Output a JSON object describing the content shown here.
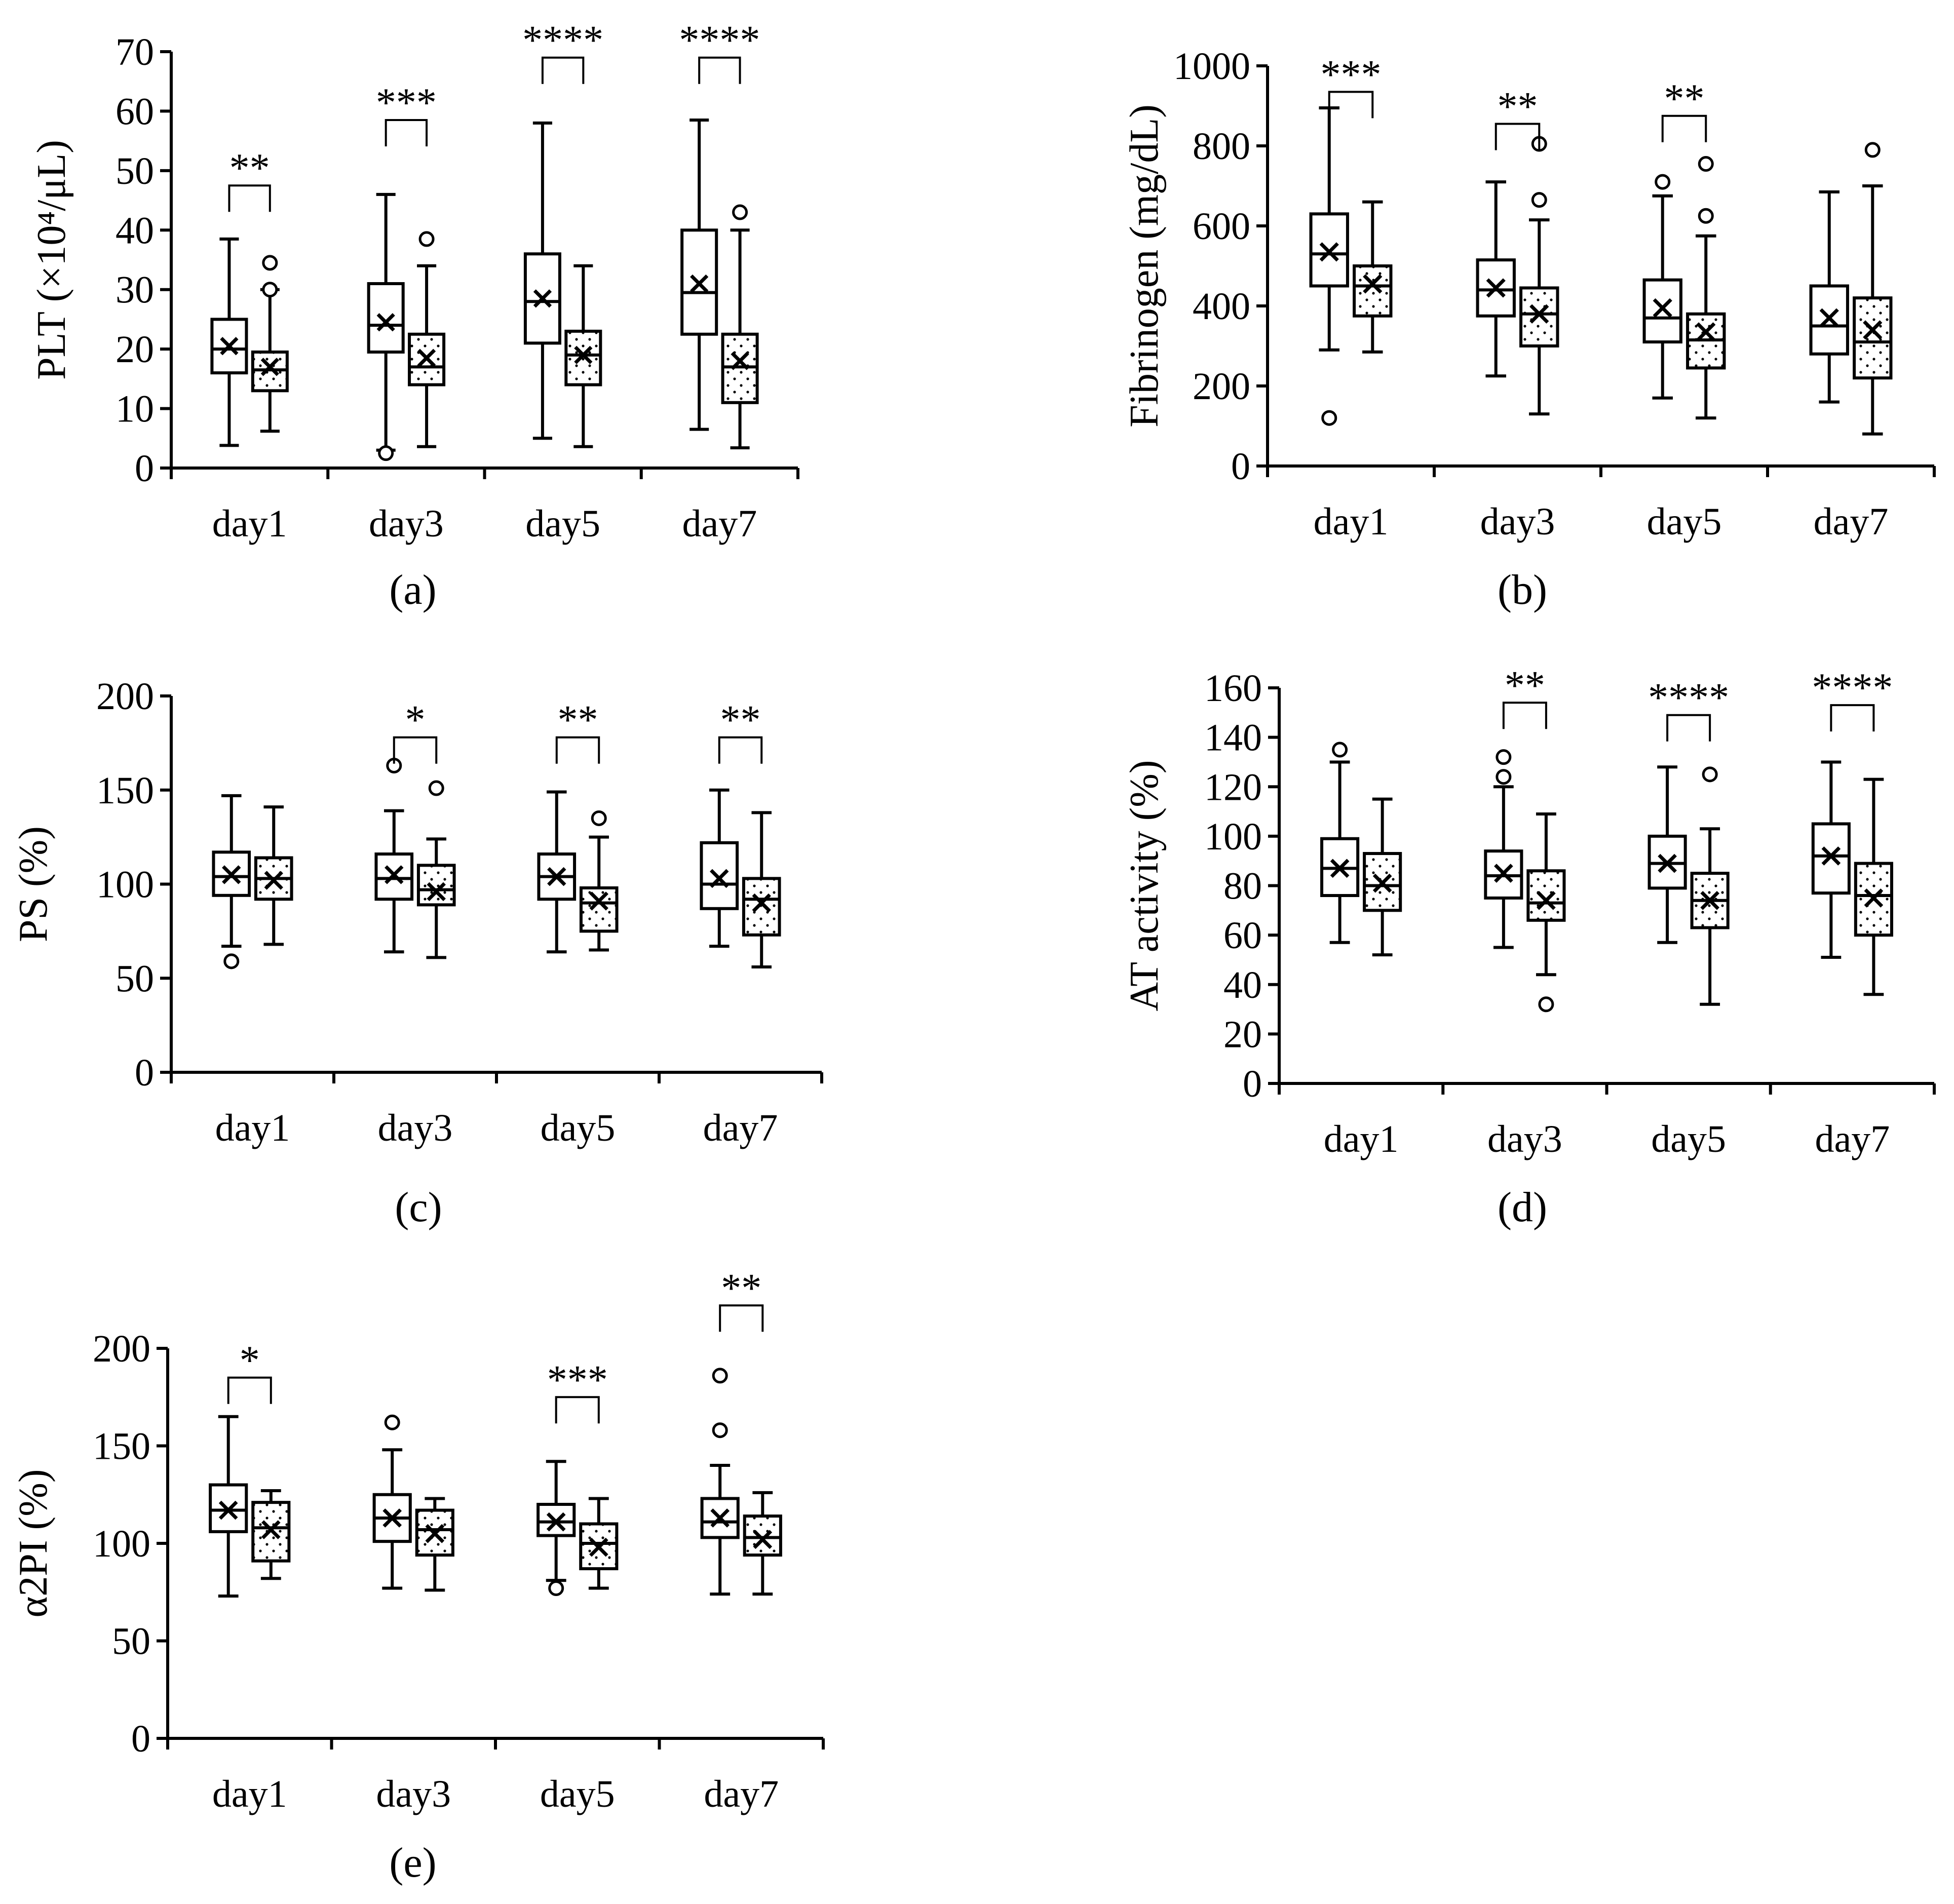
{
  "chart_data": [
    {
      "id": "a",
      "type": "box",
      "panel_label": "(a)",
      "ylabel": "PLT (×10⁴/μL)",
      "ylim": [
        0,
        70
      ],
      "yticks": [
        0,
        10,
        20,
        30,
        40,
        50,
        60,
        70
      ],
      "categories": [
        "day1",
        "day3",
        "day5",
        "day7"
      ],
      "series_style": [
        "plain",
        "dotted"
      ],
      "boxes": [
        [
          {
            "min": 3.8,
            "q1": 16,
            "median": 20,
            "q3": 25,
            "max": 38.5,
            "mean": 20.5,
            "outliers": []
          },
          {
            "min": 6.2,
            "q1": 13,
            "median": 16.5,
            "q3": 19.5,
            "max": 30,
            "mean": 17,
            "outliers": [
              30,
              34.5
            ]
          }
        ],
        [
          {
            "min": 3,
            "q1": 19.5,
            "median": 24,
            "q3": 31,
            "max": 46,
            "mean": 24.5,
            "outliers": [
              2.5
            ]
          },
          {
            "min": 3.6,
            "q1": 14,
            "median": 17,
            "q3": 22.5,
            "max": 34,
            "mean": 18.5,
            "outliers": [
              38.5
            ]
          }
        ],
        [
          {
            "min": 5,
            "q1": 21,
            "median": 28,
            "q3": 36,
            "max": 58,
            "mean": 28.5,
            "outliers": []
          },
          {
            "min": 3.6,
            "q1": 14,
            "median": 19,
            "q3": 23,
            "max": 34,
            "mean": 19,
            "outliers": []
          }
        ],
        [
          {
            "min": 6.5,
            "q1": 22.5,
            "median": 29.5,
            "q3": 40,
            "max": 58.5,
            "mean": 31,
            "outliers": []
          },
          {
            "min": 3.4,
            "q1": 11,
            "median": 17,
            "q3": 22.5,
            "max": 40,
            "mean": 18,
            "outliers": [
              43
            ]
          }
        ]
      ],
      "significance": [
        {
          "category_index": 0,
          "label": "**",
          "level": 47.5
        },
        {
          "category_index": 1,
          "label": "***",
          "level": 58.5
        },
        {
          "category_index": 2,
          "label": "****",
          "level": 69
        },
        {
          "category_index": 3,
          "label": "****",
          "level": 69
        }
      ]
    },
    {
      "id": "b",
      "type": "box",
      "panel_label": "(b)",
      "ylabel": "Fibrinogen (mg/dL)",
      "ylim": [
        0,
        1000
      ],
      "yticks": [
        0,
        200,
        400,
        600,
        800,
        1000
      ],
      "categories": [
        "day1",
        "day3",
        "day5",
        "day7"
      ],
      "series_style": [
        "plain",
        "dotted"
      ],
      "boxes": [
        [
          {
            "min": 290,
            "q1": 450,
            "median": 530,
            "q3": 630,
            "max": 895,
            "mean": 535,
            "outliers": [
              120
            ]
          },
          {
            "min": 285,
            "q1": 375,
            "median": 450,
            "q3": 500,
            "max": 660,
            "mean": 455,
            "outliers": []
          }
        ],
        [
          {
            "min": 225,
            "q1": 375,
            "median": 440,
            "q3": 515,
            "max": 710,
            "mean": 445,
            "outliers": []
          },
          {
            "min": 130,
            "q1": 300,
            "median": 380,
            "q3": 445,
            "max": 615,
            "mean": 380,
            "outliers": [
              665,
              805
            ]
          }
        ],
        [
          {
            "min": 170,
            "q1": 310,
            "median": 370,
            "q3": 465,
            "max": 675,
            "mean": 395,
            "outliers": [
              710
            ]
          },
          {
            "min": 120,
            "q1": 245,
            "median": 315,
            "q3": 380,
            "max": 575,
            "mean": 335,
            "outliers": [
              625,
              755
            ]
          }
        ],
        [
          {
            "min": 160,
            "q1": 280,
            "median": 350,
            "q3": 450,
            "max": 685,
            "mean": 370,
            "outliers": []
          },
          {
            "min": 80,
            "q1": 220,
            "median": 310,
            "q3": 420,
            "max": 700,
            "mean": 340,
            "outliers": [
              790
            ]
          }
        ]
      ],
      "significance": [
        {
          "category_index": 0,
          "label": "***",
          "level": 935
        },
        {
          "category_index": 1,
          "label": "**",
          "level": 855
        },
        {
          "category_index": 2,
          "label": "**",
          "level": 875
        }
      ]
    },
    {
      "id": "c",
      "type": "box",
      "panel_label": "(c)",
      "ylabel": "PS (%)",
      "ylim": [
        0,
        200
      ],
      "yticks": [
        0,
        50,
        100,
        150,
        200
      ],
      "categories": [
        "day1",
        "day3",
        "day5",
        "day7"
      ],
      "series_style": [
        "plain",
        "dotted"
      ],
      "boxes": [
        [
          {
            "min": 67,
            "q1": 94,
            "median": 104,
            "q3": 117,
            "max": 147,
            "mean": 105,
            "outliers": [
              59
            ]
          },
          {
            "min": 68,
            "q1": 92,
            "median": 103,
            "q3": 114,
            "max": 141,
            "mean": 102,
            "outliers": []
          }
        ],
        [
          {
            "min": 64,
            "q1": 92,
            "median": 103,
            "q3": 116,
            "max": 139,
            "mean": 105,
            "outliers": [
              163
            ]
          },
          {
            "min": 61,
            "q1": 89,
            "median": 97,
            "q3": 110,
            "max": 124,
            "mean": 96,
            "outliers": [
              151
            ]
          }
        ],
        [
          {
            "min": 64,
            "q1": 92,
            "median": 104,
            "q3": 116,
            "max": 149,
            "mean": 104,
            "outliers": []
          },
          {
            "min": 65,
            "q1": 75,
            "median": 90,
            "q3": 98,
            "max": 125,
            "mean": 91,
            "outliers": [
              135
            ]
          }
        ],
        [
          {
            "min": 67,
            "q1": 87,
            "median": 100,
            "q3": 122,
            "max": 150,
            "mean": 103,
            "outliers": []
          },
          {
            "min": 56,
            "q1": 73,
            "median": 92,
            "q3": 103,
            "max": 138,
            "mean": 90,
            "outliers": []
          }
        ]
      ],
      "significance": [
        {
          "category_index": 1,
          "label": "*",
          "level": 178
        },
        {
          "category_index": 2,
          "label": "**",
          "level": 178
        },
        {
          "category_index": 3,
          "label": "**",
          "level": 178
        }
      ]
    },
    {
      "id": "d",
      "type": "box",
      "panel_label": "(d)",
      "ylabel": "AT activity (%)",
      "ylim": [
        0,
        160
      ],
      "yticks": [
        0,
        20,
        40,
        60,
        80,
        100,
        120,
        140,
        160
      ],
      "categories": [
        "day1",
        "day3",
        "day5",
        "day7"
      ],
      "series_style": [
        "plain",
        "dotted"
      ],
      "boxes": [
        [
          {
            "min": 57,
            "q1": 76,
            "median": 87,
            "q3": 99,
            "max": 130,
            "mean": 87,
            "outliers": [
              135
            ]
          },
          {
            "min": 52,
            "q1": 70,
            "median": 80,
            "q3": 93,
            "max": 115,
            "mean": 81,
            "outliers": []
          }
        ],
        [
          {
            "min": 55,
            "q1": 75,
            "median": 84,
            "q3": 94,
            "max": 120,
            "mean": 85,
            "outliers": [
              124,
              132
            ]
          },
          {
            "min": 44,
            "q1": 66,
            "median": 73,
            "q3": 86,
            "max": 109,
            "mean": 74,
            "outliers": [
              32
            ]
          }
        ],
        [
          {
            "min": 57,
            "q1": 79,
            "median": 89,
            "q3": 100,
            "max": 128,
            "mean": 89,
            "outliers": []
          },
          {
            "min": 32,
            "q1": 63,
            "median": 74,
            "q3": 85,
            "max": 103,
            "mean": 74,
            "outliers": [
              125
            ]
          }
        ],
        [
          {
            "min": 51,
            "q1": 77,
            "median": 92,
            "q3": 105,
            "max": 130,
            "mean": 92,
            "outliers": []
          },
          {
            "min": 36,
            "q1": 60,
            "median": 76,
            "q3": 89,
            "max": 123,
            "mean": 75,
            "outliers": []
          }
        ]
      ],
      "significance": [
        {
          "category_index": 1,
          "label": "**",
          "level": 154
        },
        {
          "category_index": 2,
          "label": "****",
          "level": 149
        },
        {
          "category_index": 3,
          "label": "****",
          "level": 153
        }
      ]
    },
    {
      "id": "e",
      "type": "box",
      "panel_label": "(e)",
      "ylabel": "α2PI (%)",
      "ylim": [
        0,
        200
      ],
      "yticks": [
        0,
        50,
        100,
        150,
        200
      ],
      "categories": [
        "day1",
        "day3",
        "day5",
        "day7"
      ],
      "series_style": [
        "plain",
        "dotted"
      ],
      "boxes": [
        [
          {
            "min": 73,
            "q1": 106,
            "median": 117,
            "q3": 130,
            "max": 165,
            "mean": 117,
            "outliers": []
          },
          {
            "min": 82,
            "q1": 91,
            "median": 108,
            "q3": 121,
            "max": 127,
            "mean": 107,
            "outliers": []
          }
        ],
        [
          {
            "min": 77,
            "q1": 101,
            "median": 113,
            "q3": 125,
            "max": 148,
            "mean": 113,
            "outliers": [
              162
            ]
          },
          {
            "min": 76,
            "q1": 94,
            "median": 107,
            "q3": 117,
            "max": 123,
            "mean": 105,
            "outliers": []
          }
        ],
        [
          {
            "min": 81,
            "q1": 104,
            "median": 111,
            "q3": 120,
            "max": 142,
            "mean": 111,
            "outliers": [
              77
            ]
          },
          {
            "min": 77,
            "q1": 87,
            "median": 100,
            "q3": 110,
            "max": 123,
            "mean": 98,
            "outliers": []
          }
        ],
        [
          {
            "min": 74,
            "q1": 103,
            "median": 111,
            "q3": 123,
            "max": 140,
            "mean": 113,
            "outliers": [
              158,
              186
            ]
          },
          {
            "min": 74,
            "q1": 94,
            "median": 103,
            "q3": 114,
            "max": 126,
            "mean": 102,
            "outliers": []
          }
        ]
      ],
      "significance": [
        {
          "category_index": 0,
          "label": "*",
          "level": 185
        },
        {
          "category_index": 2,
          "label": "***",
          "level": 175
        },
        {
          "category_index": 3,
          "label": "**",
          "level": 222
        }
      ]
    }
  ]
}
